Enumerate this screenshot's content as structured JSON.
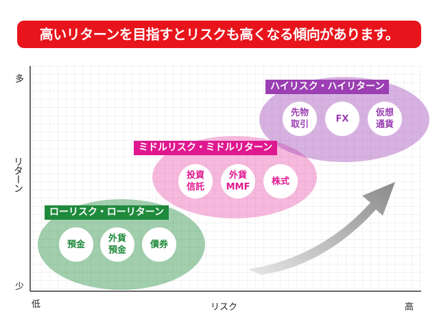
{
  "banner_text": "高いリターンを目指すとリスクも高くなる傾向があります。",
  "axes": {
    "y_title": "リターン",
    "y_high": "多",
    "y_low": "少",
    "x_title": "リスク",
    "x_low": "低",
    "x_high": "高"
  },
  "colors": {
    "banner": "#e8141c",
    "low_group": "#1f8a3c",
    "mid_group": "#e0188f",
    "high_group": "#9b3fb3",
    "arrow": "#9a9a9a"
  },
  "groups": [
    {
      "title": "ローリスク・ローリターン",
      "items": [
        "預金",
        "外貨\n預金",
        "債券"
      ]
    },
    {
      "title": "ミドルリスク・ミドルリターン",
      "items": [
        "投資\n信託",
        "外貨\nMMF",
        "株式"
      ]
    },
    {
      "title": "ハイリスク・ハイリターン",
      "items": [
        "先物\n取引",
        "FX",
        "仮想\n通貨"
      ]
    }
  ]
}
